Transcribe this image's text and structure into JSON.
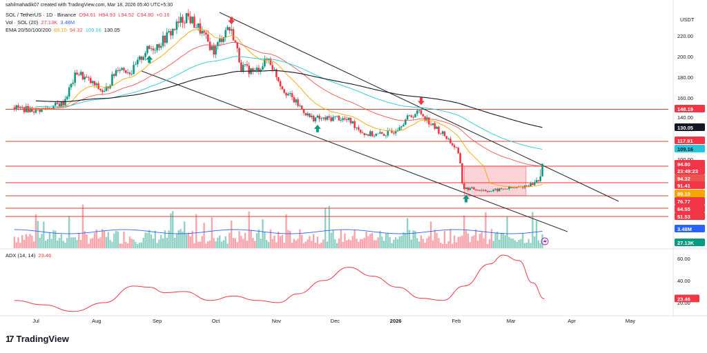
{
  "header": {
    "credit": "sahilmahadik07 created with TradingView.com, Mar 18, 2026 05:40 UTC+5:30",
    "symbol": "SOL / TetherUS · 1D · Binance",
    "ohlc": {
      "o": "O94.61",
      "h": "H94.93",
      "l": "L94.52",
      "c": "C94.80",
      "chg": "+0.16"
    },
    "vol_label": "Vol · SOL (20)",
    "vol_values": [
      "27.13K",
      "3.48M"
    ],
    "ema_label": "EMA 20/50/100/200",
    "ema_values": [
      "89.10",
      "94.32",
      "109.16",
      "130.05"
    ],
    "currency": "USDT"
  },
  "brand": {
    "logo": "17",
    "name": "TradingView"
  },
  "colors": {
    "up": "#089981",
    "down": "#f23645",
    "ema20": "#f7a600",
    "ema50": "#ef5350",
    "ema100": "#26c6da",
    "ema200": "#131722",
    "vol_ma": "#2962ff",
    "adx": "#f23645",
    "hline": "#e53935",
    "trendline": "#2a2e39"
  },
  "chart_data": [
    {
      "type": "candlestick",
      "title": "SOL / TetherUS · 1D · Binance",
      "y_ticks": [
        100,
        120,
        140,
        160,
        180,
        200,
        220
      ],
      "y_tick_labels": [
        "100.00",
        "120.00",
        "140.00",
        "160.00",
        "180.00",
        "200.00",
        "220.00"
      ],
      "x_ticks": [
        "Jul",
        "Aug",
        "Sep",
        "Oct",
        "Nov",
        "Dec",
        "2026",
        "Feb",
        "Mar",
        "Apr",
        "May"
      ],
      "ylim": [
        60,
        236
      ],
      "close_path": [
        [
          "Jun 20",
          150
        ],
        [
          "Jul 1",
          147
        ],
        [
          "Jul 8",
          150
        ],
        [
          "Jul 15",
          155
        ],
        [
          "Jul 22",
          185
        ],
        [
          "Jul 29",
          175
        ],
        [
          "Aug 5",
          165
        ],
        [
          "Aug 12",
          190
        ],
        [
          "Aug 19",
          185
        ],
        [
          "Aug 26",
          205
        ],
        [
          "Sep 2",
          212
        ],
        [
          "Sep 9",
          225
        ],
        [
          "Sep 16",
          238
        ],
        [
          "Sep 23",
          225
        ],
        [
          "Sep 30",
          205
        ],
        [
          "Oct 7",
          228
        ],
        [
          "Oct 10",
          220
        ],
        [
          "Oct 14",
          190
        ],
        [
          "Oct 21",
          185
        ],
        [
          "Oct 28",
          198
        ],
        [
          "Nov 4",
          170
        ],
        [
          "Nov 11",
          155
        ],
        [
          "Nov 18",
          140
        ],
        [
          "Nov 25",
          138
        ],
        [
          "Dec 2",
          140
        ],
        [
          "Dec 9",
          136
        ],
        [
          "Dec 16",
          125
        ],
        [
          "Dec 23",
          124
        ],
        [
          "Dec 30",
          126
        ],
        [
          "Jan 6",
          138
        ],
        [
          "Jan 13",
          146
        ],
        [
          "Jan 20",
          132
        ],
        [
          "Jan 27",
          122
        ],
        [
          "Feb 1",
          110
        ],
        [
          "Feb 5",
          85
        ],
        [
          "Feb 12",
          84
        ],
        [
          "Feb 19",
          82
        ],
        [
          "Feb 26",
          85
        ],
        [
          "Mar 5",
          86
        ],
        [
          "Mar 12",
          90
        ],
        [
          "Mar 17",
          94.8
        ]
      ],
      "ema_series": [
        {
          "name": "EMA 20",
          "last": 89.1
        },
        {
          "name": "EMA 50",
          "last": 94.32
        },
        {
          "name": "EMA 100",
          "last": 109.16
        },
        {
          "name": "EMA 200",
          "last": 130.05
        }
      ],
      "horizontal_levels": [
        148.19,
        117.91,
        94.8,
        91.41,
        76.77,
        64.55,
        51.53
      ],
      "price_labels": [
        {
          "value": "148.19",
          "kind": "level"
        },
        {
          "value": "130.05",
          "kind": "ema200"
        },
        {
          "value": "117.91",
          "kind": "level"
        },
        {
          "value": "109.16",
          "kind": "ema100"
        },
        {
          "value": "100.00",
          "kind": "tick"
        },
        {
          "value": "94.80",
          "kind": "last"
        },
        {
          "value": "23:49:23",
          "kind": "countdown"
        },
        {
          "value": "94.32",
          "kind": "ema50"
        },
        {
          "value": "91.41",
          "kind": "level"
        },
        {
          "value": "89.10",
          "kind": "ema20"
        },
        {
          "value": "76.77",
          "kind": "level"
        },
        {
          "value": "64.55",
          "kind": "level"
        },
        {
          "value": "51.53",
          "kind": "level"
        },
        {
          "value": "3.48M",
          "kind": "vol_ma"
        },
        {
          "value": "27.13K",
          "kind": "vol"
        }
      ],
      "markers": [
        {
          "date": "Aug 28",
          "type": "arrow-up",
          "color": "green"
        },
        {
          "date": "Oct 9",
          "type": "arrow-down",
          "color": "red"
        },
        {
          "date": "Nov 22",
          "type": "arrow-up",
          "color": "green"
        },
        {
          "date": "Jan 14",
          "type": "arrow-down",
          "color": "red"
        },
        {
          "date": "Feb 6",
          "type": "arrow-up",
          "color": "green"
        }
      ],
      "consolidation_box": {
        "from": "Feb 5",
        "to": "Mar 3",
        "high": 94.8,
        "low": 76.77
      }
    },
    {
      "type": "line",
      "title": "ADX (14, 14)",
      "last_value": "23.46",
      "y_ticks": [
        20,
        40,
        60
      ],
      "y_tick_labels": [
        "20.00",
        "40.00",
        "60.00"
      ],
      "x_ticks": [
        "Jul",
        "Aug",
        "Sep",
        "Oct",
        "Nov",
        "Dec",
        "2026",
        "Feb",
        "Mar",
        "Apr",
        "May"
      ],
      "ylim": [
        10,
        68
      ],
      "series_points": [
        [
          "Jun 20",
          22
        ],
        [
          "Jul 5",
          18
        ],
        [
          "Jul 20",
          12
        ],
        [
          "Aug 5",
          20
        ],
        [
          "Aug 20",
          35
        ],
        [
          "Aug 28",
          34
        ],
        [
          "Sep 5",
          29
        ],
        [
          "Sep 15",
          30
        ],
        [
          "Sep 28",
          22
        ],
        [
          "Oct 10",
          26
        ],
        [
          "Oct 22",
          22
        ],
        [
          "Nov 2",
          20
        ],
        [
          "Nov 12",
          28
        ],
        [
          "Nov 25",
          40
        ],
        [
          "Dec 8",
          52
        ],
        [
          "Dec 20",
          44
        ],
        [
          "Jan 2",
          34
        ],
        [
          "Jan 14",
          24
        ],
        [
          "Jan 25",
          22
        ],
        [
          "Feb 5",
          35
        ],
        [
          "Feb 18",
          55
        ],
        [
          "Feb 25",
          63
        ],
        [
          "Mar 5",
          58
        ],
        [
          "Mar 12",
          38
        ],
        [
          "Mar 18",
          23.46
        ]
      ]
    }
  ]
}
